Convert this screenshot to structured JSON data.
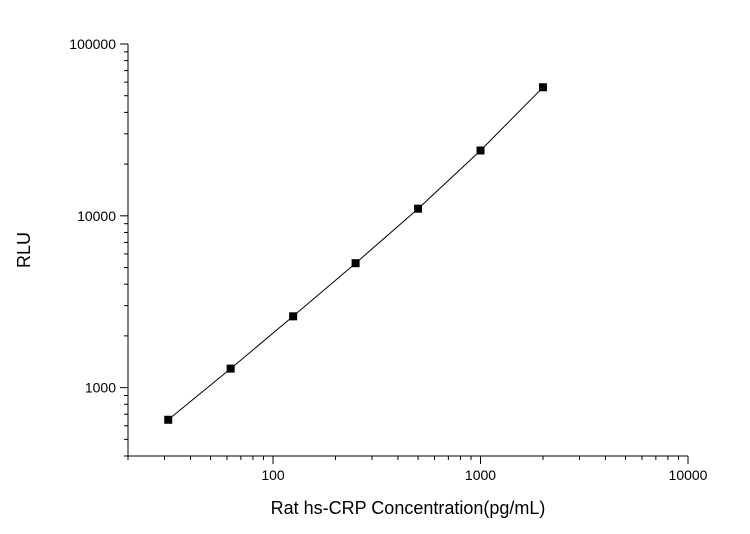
{
  "chart_data": {
    "type": "scatter",
    "xlabel": "Rat hs-CRP Concentration(pg/mL)",
    "ylabel": "RLU",
    "xscale": "log",
    "yscale": "log",
    "xlim": [
      20,
      10000
    ],
    "ylim": [
      400,
      100000
    ],
    "xticks": [
      100,
      1000,
      10000
    ],
    "xtick_labels": [
      "100",
      "1000",
      "10000"
    ],
    "yticks": [
      1000,
      10000,
      100000
    ],
    "ytick_labels": [
      "1000",
      "10000",
      "100000"
    ],
    "grid": false,
    "legend": "none",
    "series": [
      {
        "x": [
          31.25,
          62.5,
          125,
          250,
          500,
          1000,
          2000
        ],
        "y": [
          650,
          1290,
          2600,
          5300,
          11000,
          24000,
          56000
        ],
        "marker": "square",
        "fit_line": true,
        "color": "#000000"
      }
    ]
  }
}
